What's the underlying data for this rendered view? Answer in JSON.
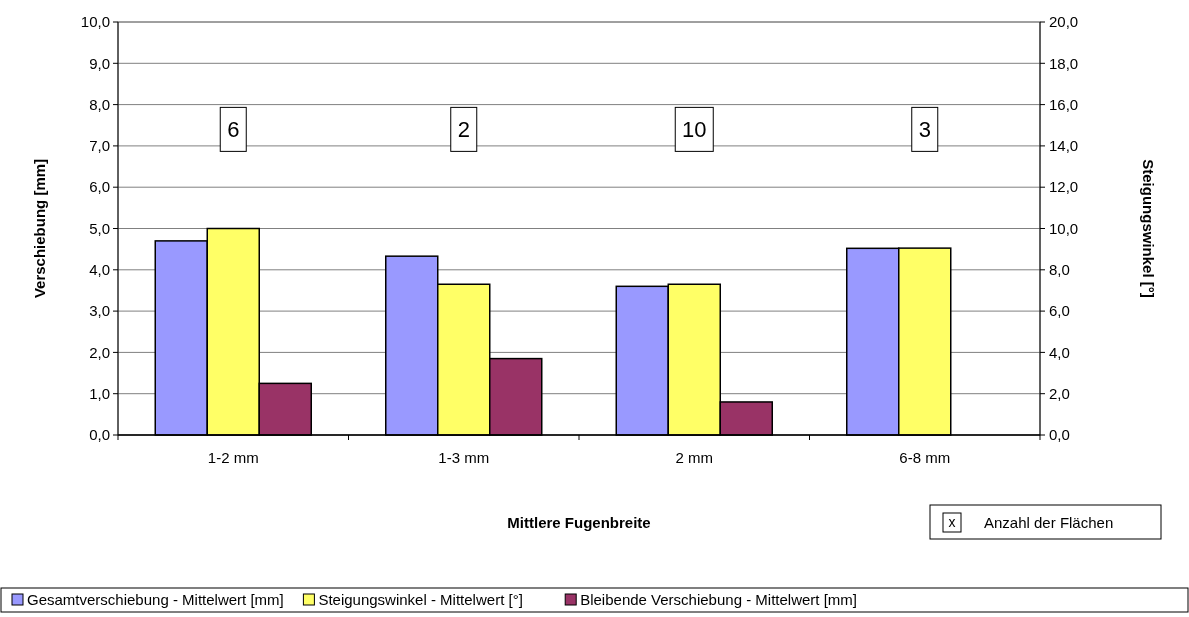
{
  "chart_data": {
    "type": "bar",
    "xlabel": "Mittlere Fugenbreite",
    "ylabel": "Verschiebung [mm]",
    "y2label": "Steigungswinkel [°]",
    "categories": [
      "1-2 mm",
      "1-3 mm",
      "2 mm",
      "6-8 mm"
    ],
    "series": [
      {
        "name": "Gesamtverschiebung - Mittelwert [mm]",
        "color": "#9999ff",
        "values": [
          4.7,
          4.33,
          3.6,
          4.52
        ]
      },
      {
        "name": "Steigungswinkel - Mittelwert [°]",
        "color": "#ffff66",
        "values": [
          10.0,
          7.3,
          7.3,
          9.05
        ],
        "axis": "y2"
      },
      {
        "name": "Bleibende Verschiebung - Mittelwert [mm]",
        "color": "#993366",
        "values": [
          1.25,
          1.85,
          0.8,
          null
        ]
      }
    ],
    "ylim": [
      0,
      10
    ],
    "yticks": [
      {
        "value": 0,
        "label": "0,0"
      },
      {
        "value": 1,
        "label": "1,0"
      },
      {
        "value": 2,
        "label": "2,0"
      },
      {
        "value": 3,
        "label": "3,0"
      },
      {
        "value": 4,
        "label": "4,0"
      },
      {
        "value": 5,
        "label": "5,0"
      },
      {
        "value": 6,
        "label": "6,0"
      },
      {
        "value": 7,
        "label": "7,0"
      },
      {
        "value": 8,
        "label": "8,0"
      },
      {
        "value": 9,
        "label": "9,0"
      },
      {
        "value": 10,
        "label": "10,0"
      }
    ],
    "y2lim": [
      0,
      20
    ],
    "y2ticks": [
      {
        "value": 0,
        "label": "0,0"
      },
      {
        "value": 2,
        "label": "2,0"
      },
      {
        "value": 4,
        "label": "4,0"
      },
      {
        "value": 6,
        "label": "6,0"
      },
      {
        "value": 8,
        "label": "8,0"
      },
      {
        "value": 10,
        "label": "10,0"
      },
      {
        "value": 12,
        "label": "12,0"
      },
      {
        "value": 14,
        "label": "14,0"
      },
      {
        "value": 16,
        "label": "16,0"
      },
      {
        "value": 18,
        "label": "18,0"
      },
      {
        "value": 20,
        "label": "20,0"
      }
    ],
    "grid": "y",
    "legend": "bottom",
    "annotations": [
      "6",
      "2",
      "10",
      "3",
      "x",
      "Anzahl der Flächen"
    ]
  }
}
